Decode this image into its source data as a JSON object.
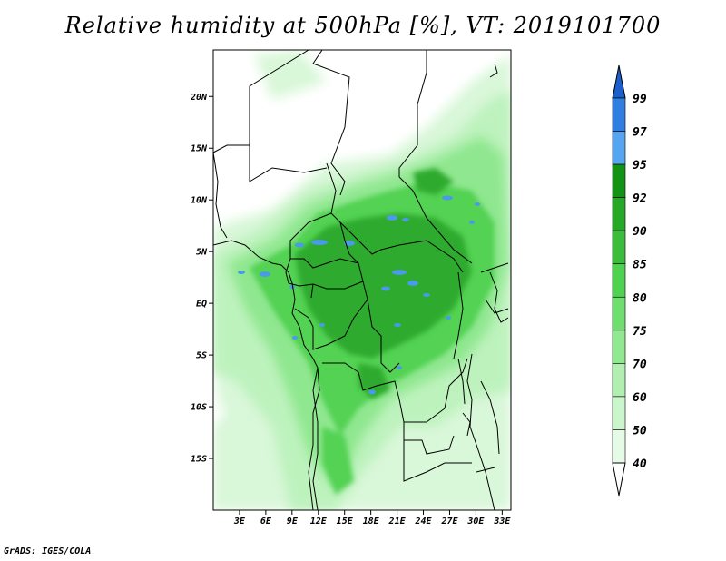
{
  "title": "Relative humidity at 500hPa [%], VT: 2019101700",
  "footer": "GrADS: IGES/COLA",
  "map": {
    "lon_range": [
      0,
      34
    ],
    "lat_range": [
      -20,
      24.5
    ],
    "lat_ticks": [
      {
        "value": 20,
        "label": "20N"
      },
      {
        "value": 15,
        "label": "15N"
      },
      {
        "value": 10,
        "label": "10N"
      },
      {
        "value": 5,
        "label": "5N"
      },
      {
        "value": 0,
        "label": "EQ"
      },
      {
        "value": -5,
        "label": "5S"
      },
      {
        "value": -10,
        "label": "10S"
      },
      {
        "value": -15,
        "label": "15S"
      }
    ],
    "lon_ticks": [
      {
        "value": 3,
        "label": "3E"
      },
      {
        "value": 6,
        "label": "6E"
      },
      {
        "value": 9,
        "label": "9E"
      },
      {
        "value": 12,
        "label": "12E"
      },
      {
        "value": 15,
        "label": "15E"
      },
      {
        "value": 18,
        "label": "18E"
      },
      {
        "value": 21,
        "label": "21E"
      },
      {
        "value": 24,
        "label": "24E"
      },
      {
        "value": 27,
        "label": "27E"
      },
      {
        "value": 30,
        "label": "30E"
      },
      {
        "value": 33,
        "label": "33E"
      }
    ]
  },
  "colorbar": {
    "levels": [
      {
        "label": "40",
        "color": "#ffffff"
      },
      {
        "label": "50",
        "color": "#e6fbe6"
      },
      {
        "label": "60",
        "color": "#cbf5cb"
      },
      {
        "label": "70",
        "color": "#b0efb0"
      },
      {
        "label": "75",
        "color": "#90e890"
      },
      {
        "label": "80",
        "color": "#6ede6e"
      },
      {
        "label": "85",
        "color": "#4fd24f"
      },
      {
        "label": "90",
        "color": "#3bbd3b"
      },
      {
        "label": "92",
        "color": "#27a827"
      },
      {
        "label": "95",
        "color": "#139313"
      },
      {
        "label": "97",
        "color": "#55a5f0"
      },
      {
        "label": "99",
        "color": "#2f7fe0"
      }
    ],
    "top_color": "#1a5fcc",
    "bottom_color": "#ffffff"
  }
}
